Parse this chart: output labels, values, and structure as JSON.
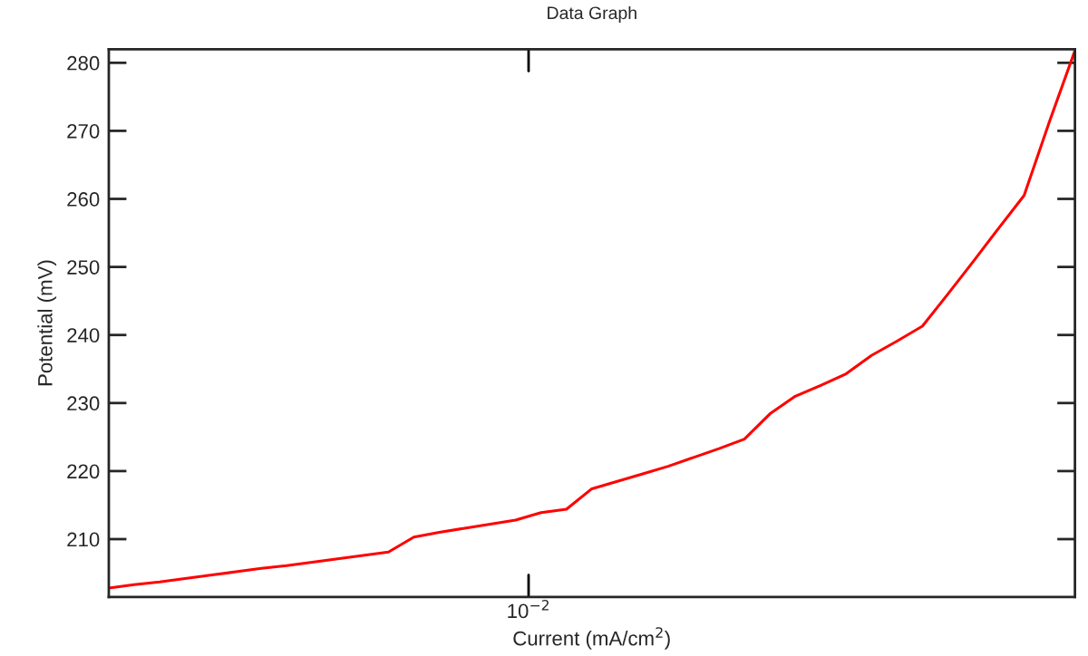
{
  "chart_data": {
    "type": "line",
    "title": "Data Graph",
    "xlabel": "Current (mA/cm$^{2}$)",
    "ylabel": "Potential (mV)",
    "grid": false,
    "marker": "none",
    "line_style": "solid",
    "tick_labels": "y",
    "annotations": [
      "10$^{−2}$"
    ],
    "categories": [
      null,
      null,
      null,
      null,
      null,
      null,
      null,
      null,
      null,
      null,
      null,
      null,
      null,
      null,
      null,
      null,
      null,
      null,
      null,
      null,
      null,
      null,
      null,
      null,
      null,
      null,
      null,
      null,
      null,
      null,
      null,
      null,
      null,
      null,
      null,
      null,
      null,
      null,
      null
    ],
    "ylim": [
      201.5,
      282
    ],
    "yticks": [
      210,
      220,
      230,
      240,
      250,
      260,
      270,
      280
    ],
    "series": [
      {
        "color": "#ff0000",
        "values": [
          202.8,
          203.3,
          203.7,
          204.2,
          204.7,
          205.2,
          205.7,
          206.1,
          206.6,
          207.1,
          207.6,
          208.1,
          210.3,
          211.0,
          211.6,
          212.2,
          212.8,
          213.9,
          214.4,
          217.4,
          218.5,
          219.6,
          220.7,
          222.0,
          223.3,
          224.7,
          228.4,
          231.0,
          232.6,
          234.3,
          237.0,
          239.1,
          241.3,
          246.0,
          250.8,
          255.7,
          260.5,
          271.4,
          281.8
        ]
      }
    ]
  }
}
